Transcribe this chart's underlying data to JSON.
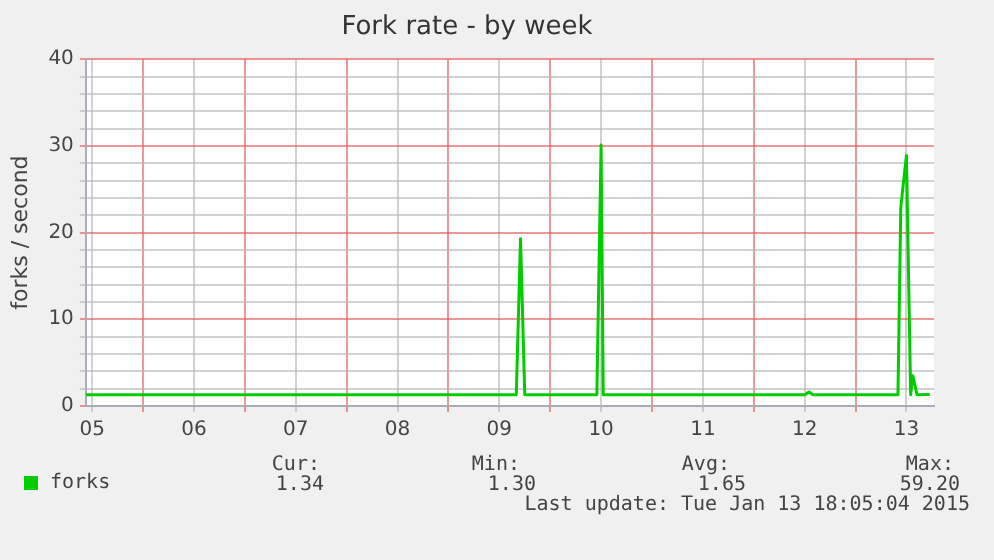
{
  "chart_data": {
    "type": "line",
    "title": "Fork rate - by week",
    "ylabel": "forks / second",
    "x": [
      "2015-01-05T10:30",
      "2015-01-09T16:00",
      "2015-01-09T17:00",
      "2015-01-09T18:00",
      "2015-01-10T11:00",
      "2015-01-10T12:00",
      "2015-01-10T12:30",
      "2015-01-12T12:00",
      "2015-01-12T13:00",
      "2015-01-12T14:00",
      "2015-01-13T10:00",
      "2015-01-13T10:40",
      "2015-01-13T12:00",
      "2015-01-13T13:00",
      "2015-01-13T13:30",
      "2015-01-13T14:30",
      "2015-01-13T17:30"
    ],
    "series": [
      {
        "name": "forks",
        "color": "#00cc00",
        "values": [
          1.3,
          1.3,
          19.3,
          1.3,
          1.3,
          30.1,
          1.3,
          1.3,
          1.6,
          1.3,
          1.3,
          22.9,
          28.9,
          1.3,
          3.5,
          1.3,
          1.34
        ]
      }
    ],
    "xlim": [
      "2015-01-05T10:30",
      "2015-01-13T18:30"
    ],
    "xticks": [
      {
        "value": "2015-01-05T12:00",
        "label": "05"
      },
      {
        "value": "2015-01-06T00:00",
        "label": null
      },
      {
        "value": "2015-01-06T12:00",
        "label": "06"
      },
      {
        "value": "2015-01-07T00:00",
        "label": null
      },
      {
        "value": "2015-01-07T12:00",
        "label": "07"
      },
      {
        "value": "2015-01-08T00:00",
        "label": null
      },
      {
        "value": "2015-01-08T12:00",
        "label": "08"
      },
      {
        "value": "2015-01-09T00:00",
        "label": null
      },
      {
        "value": "2015-01-09T12:00",
        "label": "09"
      },
      {
        "value": "2015-01-10T00:00",
        "label": null
      },
      {
        "value": "2015-01-10T12:00",
        "label": "10"
      },
      {
        "value": "2015-01-11T00:00",
        "label": null
      },
      {
        "value": "2015-01-11T12:00",
        "label": "11"
      },
      {
        "value": "2015-01-12T00:00",
        "label": null
      },
      {
        "value": "2015-01-12T12:00",
        "label": "12"
      },
      {
        "value": "2015-01-13T00:00",
        "label": null
      },
      {
        "value": "2015-01-13T12:00",
        "label": "13"
      }
    ],
    "ylim": [
      0,
      40
    ],
    "yticks": [
      0,
      {
        "value": 2,
        "label": null
      },
      {
        "value": 4,
        "label": null
      },
      {
        "value": 6,
        "label": null
      },
      {
        "value": 8,
        "label": null
      },
      10,
      {
        "value": 12,
        "label": null
      },
      {
        "value": 14,
        "label": null
      },
      {
        "value": 16,
        "label": null
      },
      {
        "value": 18,
        "label": null
      },
      20,
      {
        "value": 22,
        "label": null
      },
      {
        "value": 24,
        "label": null
      },
      {
        "value": 26,
        "label": null
      },
      {
        "value": 28,
        "label": null
      },
      30,
      {
        "value": 32,
        "label": null
      },
      {
        "value": 34,
        "label": null
      },
      {
        "value": 36,
        "label": null
      },
      {
        "value": 38,
        "label": null
      },
      40
    ],
    "grid": true,
    "legend": "bottom",
    "marker": "none",
    "line_style": "solid",
    "annotations": [
      "Cur:",
      "Min:",
      "Avg:",
      "Max:",
      "1.34",
      "1.30",
      "1.65",
      "59.20",
      "Last update: Tue Jan 13 18:05:04 2015"
    ]
  }
}
